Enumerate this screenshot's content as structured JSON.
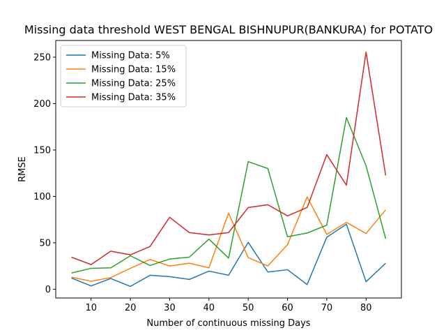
{
  "chart_data": {
    "type": "line",
    "title": "Missing data threshold WEST BENGAL BISHNUPUR(BANKURA) for POTATO",
    "xlabel": "Number of continuous missing Days",
    "ylabel": "RMSE",
    "x": [
      5,
      10,
      15,
      20,
      25,
      30,
      35,
      40,
      45,
      50,
      55,
      60,
      65,
      70,
      75,
      80,
      85
    ],
    "xlim": [
      1.0,
      89.0
    ],
    "ylim": [
      -9.5,
      268
    ],
    "xticks": [
      10,
      20,
      30,
      40,
      50,
      60,
      70,
      80
    ],
    "yticks": [
      0,
      50,
      100,
      150,
      200,
      250
    ],
    "grid": false,
    "legend_position": "top-left",
    "series": [
      {
        "name": "Missing Data: 5%",
        "color": "#1f77b4",
        "values": [
          12,
          3.5,
          11.5,
          3,
          15,
          13.5,
          10.5,
          19.5,
          15,
          50.5,
          18.5,
          21,
          5,
          56,
          70,
          8,
          28
        ]
      },
      {
        "name": "Missing Data: 15%",
        "color": "#ff7f0e",
        "values": [
          13,
          8.5,
          12.5,
          22.5,
          32,
          25,
          28,
          23,
          82,
          34,
          25,
          48,
          99.5,
          59,
          72,
          60,
          85.5
        ]
      },
      {
        "name": "Missing Data: 25%",
        "color": "#2ca02c",
        "values": [
          17.5,
          22.5,
          23,
          36,
          25.5,
          32.5,
          34.5,
          54,
          33.5,
          137.5,
          130,
          56.5,
          60.5,
          69,
          185,
          133,
          54.5
        ]
      },
      {
        "name": "Missing Data: 35%",
        "color": "#d62728",
        "values": [
          34.5,
          26.5,
          41,
          37,
          46,
          77.5,
          61,
          58.5,
          61,
          88,
          91,
          79,
          88,
          145,
          112,
          255.5,
          122.5
        ]
      }
    ]
  }
}
